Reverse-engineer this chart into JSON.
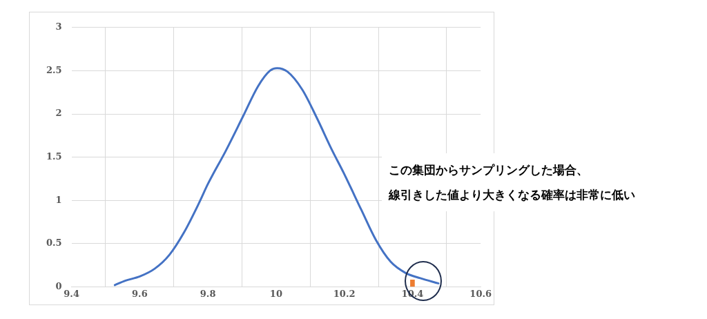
{
  "chart_data": {
    "type": "line",
    "xlim": [
      9.4,
      10.6
    ],
    "xticks": [
      9.4,
      9.6,
      9.8,
      10,
      10.2,
      10.4,
      10.6
    ],
    "ylim": [
      0,
      3
    ],
    "yticks": [
      0,
      0.5,
      1,
      1.5,
      2,
      2.5,
      3
    ],
    "grid": true,
    "legend": false,
    "marker": "none",
    "line_style": "solid",
    "series": [
      {
        "color": "#4472c4",
        "x": [
          9.527,
          9.557,
          9.6,
          9.644,
          9.687,
          9.73,
          9.774,
          9.8,
          9.852,
          9.904,
          9.947,
          9.982,
          10.003,
          10.033,
          10.077,
          10.12,
          10.163,
          10.198,
          10.25,
          10.293,
          10.336,
          10.38,
          10.423,
          10.476
        ],
        "values": [
          0.02,
          0.07,
          0.12,
          0.21,
          0.37,
          0.63,
          0.97,
          1.19,
          1.57,
          1.98,
          2.32,
          2.5,
          2.53,
          2.49,
          2.28,
          1.95,
          1.59,
          1.32,
          0.89,
          0.54,
          0.29,
          0.16,
          0.1,
          0.04
        ]
      },
      {
        "type": "bar",
        "color": "#ed7d31",
        "x": [
          10.4
        ],
        "values": [
          0.08
        ]
      }
    ],
    "annotations": [
      "この集団からサンプリングした場合、",
      "線引きした値より大きくなる確率は非常に低い"
    ]
  }
}
